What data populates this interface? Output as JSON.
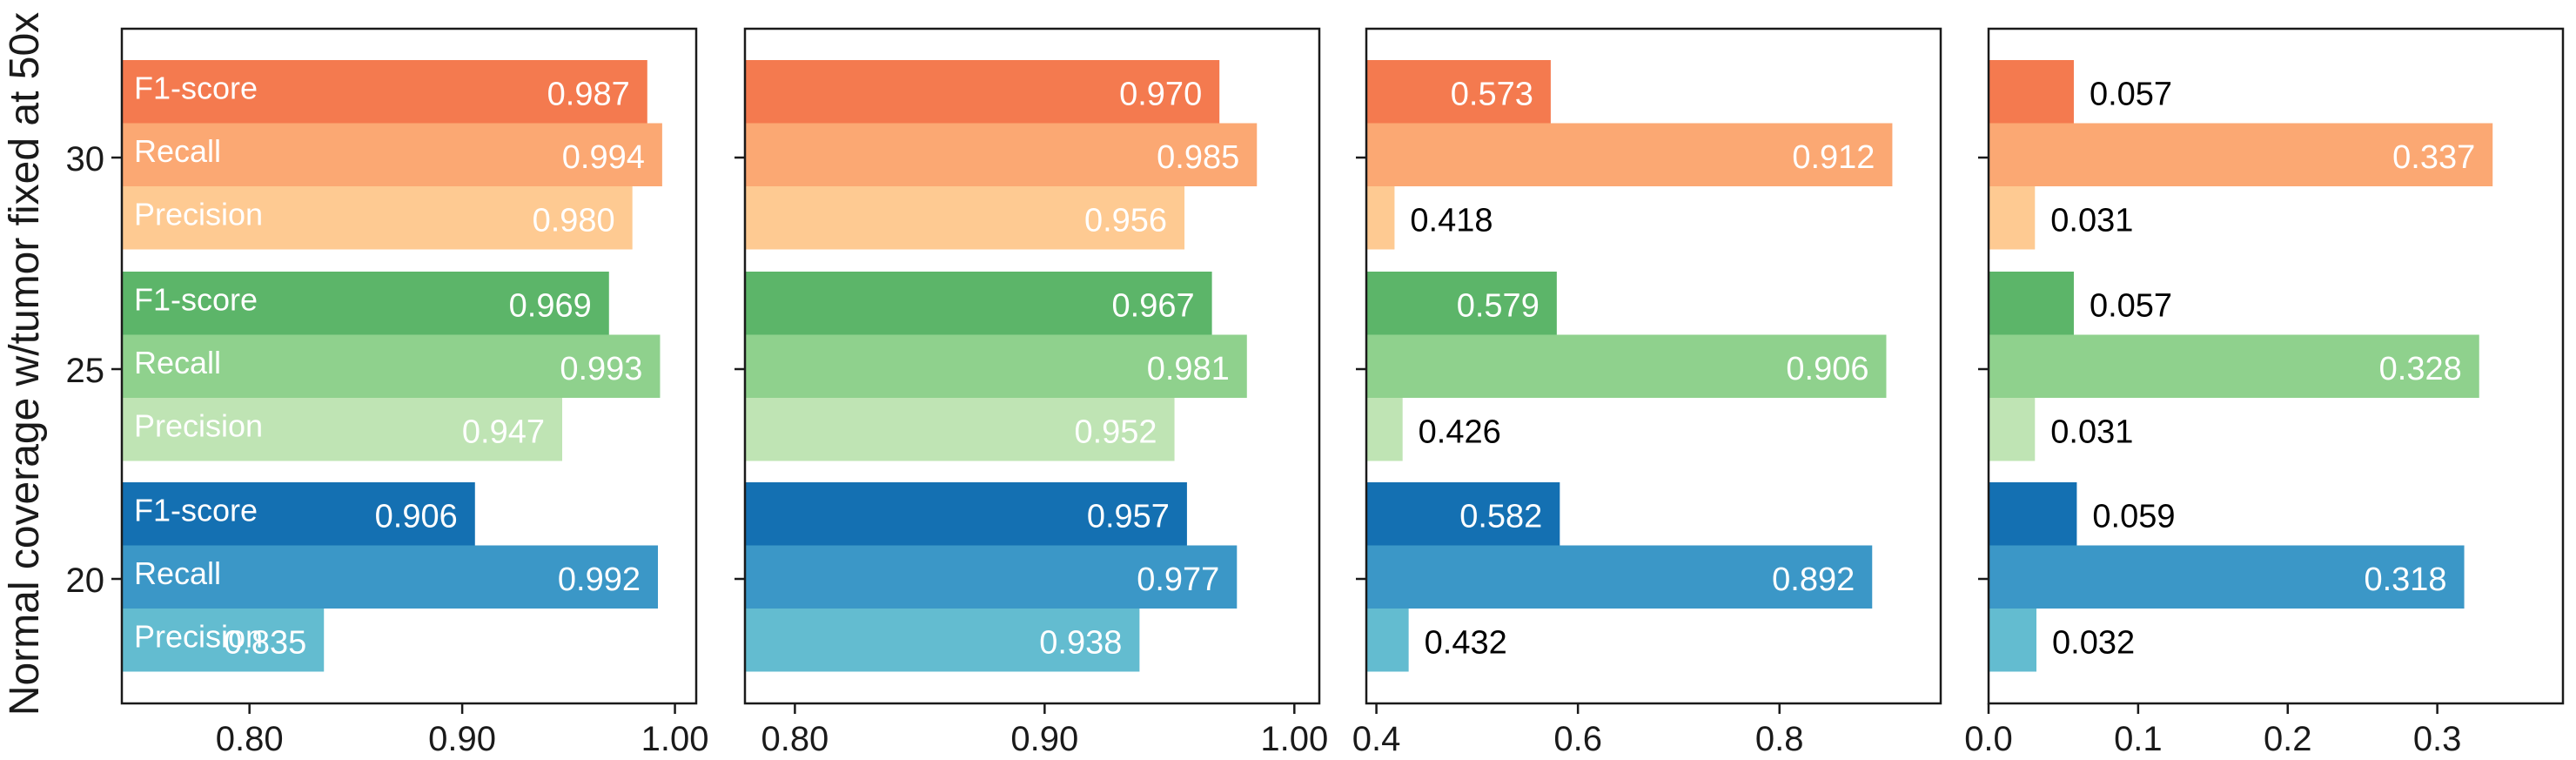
{
  "ylabel": "Normal coverage w/tumor fixed at 50x",
  "y_groups": [
    "30",
    "25",
    "20"
  ],
  "metrics": [
    "F1-score",
    "Recall",
    "Precision"
  ],
  "colors": {
    "30": [
      "#f47a4f",
      "#fba873",
      "#feca92"
    ],
    "25": [
      "#5cb569",
      "#8fd18d",
      "#bfe4b4"
    ],
    "20": [
      "#1470b2",
      "#3b97c7",
      "#63bcd0"
    ]
  },
  "value_label_colors": {
    "inside": "#ffffff",
    "outside": "#000000"
  },
  "chart_data": [
    {
      "type": "bar",
      "orientation": "horizontal",
      "xlim": [
        0.74,
        1.01
      ],
      "xticks": [
        "0.80",
        "0.90",
        "1.00"
      ],
      "xtick_values": [
        0.8,
        0.9,
        1.0
      ],
      "series": [
        {
          "group": "30",
          "values": [
            0.987,
            0.994,
            0.98
          ],
          "labels": [
            "0.987",
            "0.994",
            "0.980"
          ]
        },
        {
          "group": "25",
          "values": [
            0.969,
            0.993,
            0.947
          ],
          "labels": [
            "0.969",
            "0.993",
            "0.947"
          ]
        },
        {
          "group": "20",
          "values": [
            0.906,
            0.992,
            0.835
          ],
          "labels": [
            "0.906",
            "0.992",
            "0.835"
          ]
        }
      ]
    },
    {
      "type": "bar",
      "orientation": "horizontal",
      "xlim": [
        0.78,
        1.01
      ],
      "xticks": [
        "0.80",
        "0.90",
        "1.00"
      ],
      "xtick_values": [
        0.8,
        0.9,
        1.0
      ],
      "series": [
        {
          "group": "30",
          "values": [
            0.97,
            0.985,
            0.956
          ],
          "labels": [
            "0.970",
            "0.985",
            "0.956"
          ]
        },
        {
          "group": "25",
          "values": [
            0.967,
            0.981,
            0.952
          ],
          "labels": [
            "0.967",
            "0.981",
            "0.952"
          ]
        },
        {
          "group": "20",
          "values": [
            0.957,
            0.977,
            0.938
          ],
          "labels": [
            "0.957",
            "0.977",
            "0.938"
          ]
        }
      ]
    },
    {
      "type": "bar",
      "orientation": "horizontal",
      "xlim": [
        0.39,
        0.96
      ],
      "xticks": [
        "0.4",
        "0.6",
        "0.8"
      ],
      "xtick_values": [
        0.4,
        0.6,
        0.8
      ],
      "series": [
        {
          "group": "30",
          "values": [
            0.573,
            0.912,
            0.418
          ],
          "labels": [
            "0.573",
            "0.912",
            "0.418"
          ]
        },
        {
          "group": "25",
          "values": [
            0.579,
            0.906,
            0.426
          ],
          "labels": [
            "0.579",
            "0.906",
            "0.426"
          ]
        },
        {
          "group": "20",
          "values": [
            0.582,
            0.892,
            0.432
          ],
          "labels": [
            "0.582",
            "0.892",
            "0.432"
          ]
        }
      ]
    },
    {
      "type": "bar",
      "orientation": "horizontal",
      "xlim": [
        0.0,
        0.384
      ],
      "xticks": [
        "0.0",
        "0.1",
        "0.2",
        "0.3"
      ],
      "xtick_values": [
        0.0,
        0.1,
        0.2,
        0.3
      ],
      "series": [
        {
          "group": "30",
          "values": [
            0.057,
            0.337,
            0.031
          ],
          "labels": [
            "0.057",
            "0.337",
            "0.031"
          ]
        },
        {
          "group": "25",
          "values": [
            0.057,
            0.328,
            0.031
          ],
          "labels": [
            "0.057",
            "0.328",
            "0.031"
          ]
        },
        {
          "group": "20",
          "values": [
            0.059,
            0.318,
            0.032
          ],
          "labels": [
            "0.059",
            "0.318",
            "0.032"
          ]
        }
      ]
    }
  ]
}
